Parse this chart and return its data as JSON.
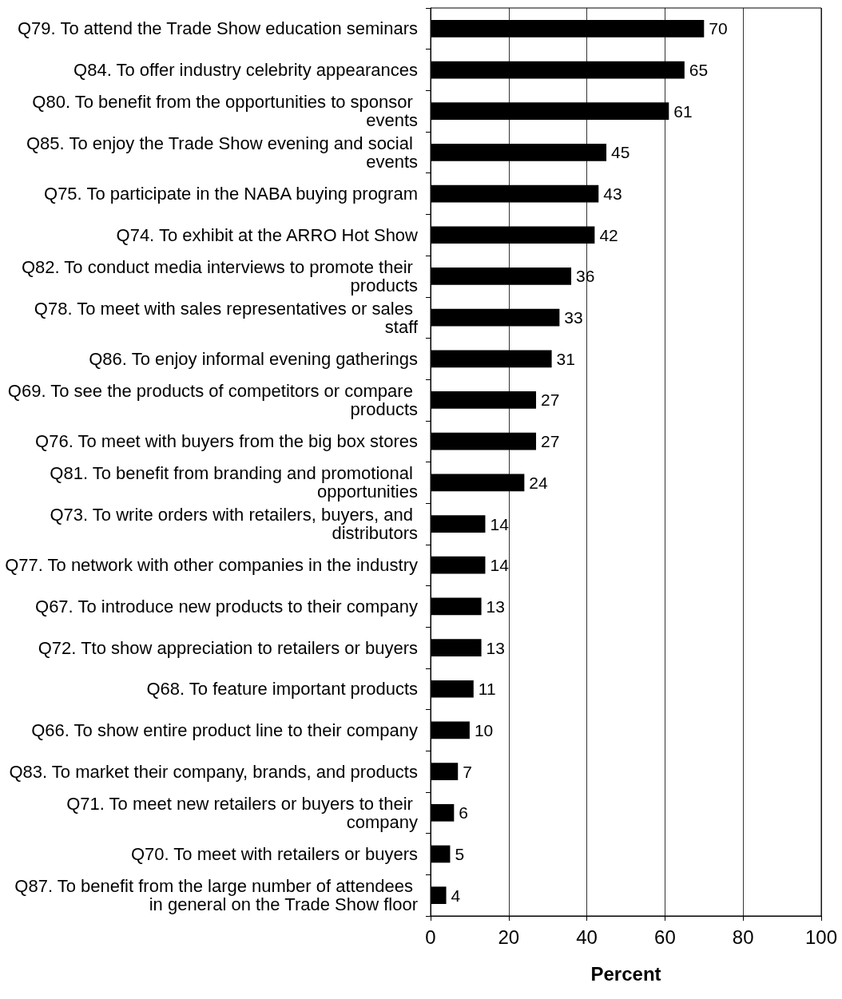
{
  "chart_data": {
    "type": "bar",
    "orientation": "horizontal",
    "xlabel": "Percent",
    "categories": [
      "Q79. To attend the Trade Show education seminars",
      "Q84. To offer industry celebrity appearances",
      "Q80. To benefit from the opportunities to sponsor events",
      "Q85. To enjoy the Trade Show evening and social events",
      "Q75. To participate in the NABA buying program",
      "Q74. To exhibit at the ARRO Hot Show",
      "Q82. To conduct media interviews to promote their products",
      "Q78. To meet with sales representatives or sales staff",
      "Q86. To enjoy informal evening gatherings",
      "Q69. To see the products of competitors or compare products",
      "Q76. To meet with buyers from the big box stores",
      "Q81. To benefit from branding and promotional opportunities",
      "Q73. To write orders with retailers, buyers, and distributors",
      "Q77. To network with other companies in the industry",
      "Q67. To introduce new products to their company",
      "Q72. Tto show appreciation to retailers or buyers",
      "Q68. To feature important products",
      "Q66. To show entire product line to their company",
      "Q83. To market their company, brands, and products",
      "Q71. To meet new retailers or buyers to their company",
      "Q70. To meet with retailers or buyers",
      "Q87. To benefit from the large number of attendees in general on the Trade Show floor"
    ],
    "values": [
      70,
      65,
      61,
      45,
      43,
      42,
      36,
      33,
      31,
      27,
      27,
      24,
      14,
      14,
      13,
      13,
      11,
      10,
      7,
      6,
      5,
      4
    ],
    "color": "#000000",
    "xlim": [
      0,
      100
    ],
    "xticks": [
      0,
      20,
      40,
      60,
      80,
      100
    ],
    "grid": "x",
    "data_labels": true
  }
}
